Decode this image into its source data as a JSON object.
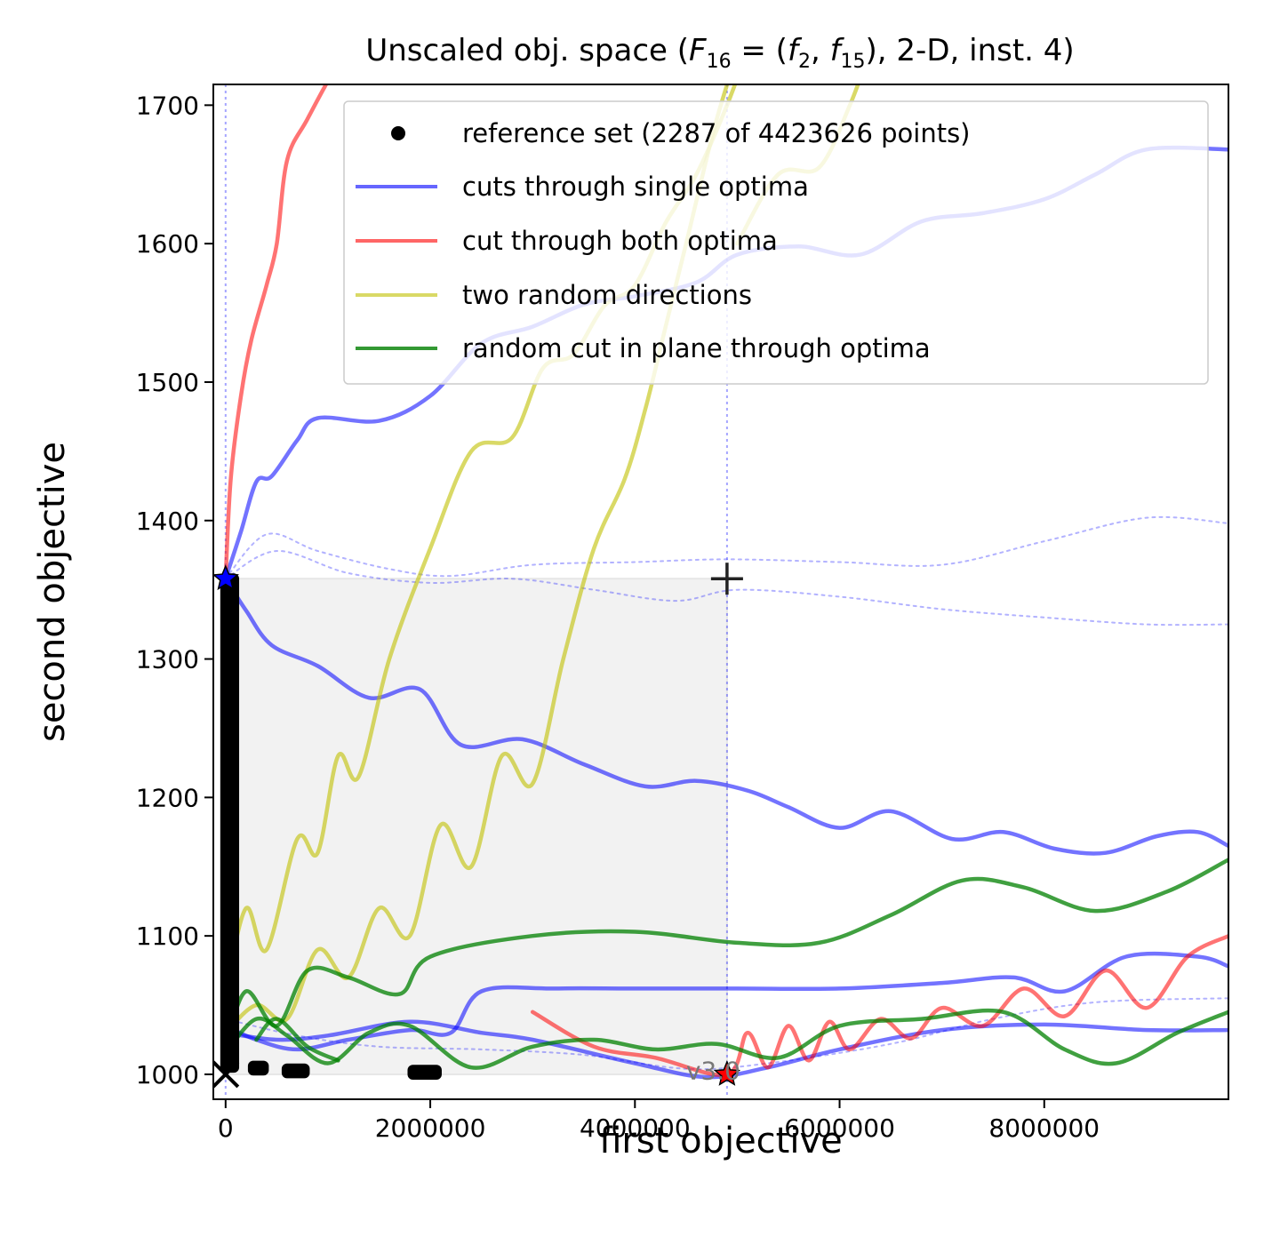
{
  "chart_data": {
    "type": "line",
    "title": "Unscaled obj. space (F16 = (f2, f15), 2-D, inst. 4)",
    "title_parts": {
      "pre": "Unscaled obj. space (",
      "F": "F",
      "F_sub": "16",
      "eq": " = (",
      "f1": "f",
      "f1_sub": "2",
      "comma": ", ",
      "f2": "f",
      "f2_sub": "15",
      "post": "), 2-D, inst. 4)"
    },
    "xlabel": "first objective",
    "ylabel": "second objective",
    "xlim": [
      -120000,
      9800000
    ],
    "ylim": [
      982,
      1715
    ],
    "xticks": [
      0,
      2000000,
      4000000,
      6000000,
      8000000
    ],
    "xtick_labels": [
      "0",
      "2000000",
      "4000000",
      "6000000",
      "8000000"
    ],
    "yticks": [
      1000,
      1100,
      1200,
      1300,
      1400,
      1500,
      1600,
      1700
    ],
    "ytick_labels": [
      "1000",
      "1100",
      "1200",
      "1300",
      "1400",
      "1500",
      "1600",
      "1700"
    ],
    "grid": false,
    "legend_position": "top-right",
    "legend": [
      {
        "label": "reference set (2287 of 4423626 points)",
        "kind": "marker",
        "color": "#000000"
      },
      {
        "label": "cuts through single optima",
        "kind": "line",
        "color": "#0000ff"
      },
      {
        "label": "cut through both optima",
        "kind": "line",
        "color": "#ff0000"
      },
      {
        "label": "two random directions",
        "kind": "line",
        "color": "#bfbf00"
      },
      {
        "label": "random cut in plane through optima",
        "kind": "line",
        "color": "#008000"
      }
    ],
    "shaded_region": {
      "x": [
        0,
        4900000
      ],
      "y": [
        1000,
        1358
      ]
    },
    "ideal_point": [
      0,
      1000
    ],
    "nadir_point": [
      4900000,
      1358
    ],
    "optimum_1": [
      0,
      1358
    ],
    "optimum_2": [
      4900000,
      1000
    ],
    "vlines_x": [
      0,
      4900000
    ],
    "annotation": "v3.0",
    "annotation_pos": [
      4500000,
      1003
    ],
    "series": [
      {
        "name": "blue cut A",
        "color": "#0000ff",
        "alpha": 0.55,
        "style": "solid",
        "points": [
          [
            0,
            1358
          ],
          [
            200000,
            1335
          ],
          [
            450000,
            1310
          ],
          [
            900000,
            1295
          ],
          [
            1400000,
            1272
          ],
          [
            1900000,
            1278
          ],
          [
            2300000,
            1238
          ],
          [
            2900000,
            1242
          ],
          [
            3500000,
            1224
          ],
          [
            4100000,
            1208
          ],
          [
            4600000,
            1212
          ],
          [
            5100000,
            1205
          ],
          [
            5500000,
            1193
          ],
          [
            6000000,
            1178
          ],
          [
            6500000,
            1190
          ],
          [
            7100000,
            1170
          ],
          [
            7600000,
            1175
          ],
          [
            8100000,
            1163
          ],
          [
            8600000,
            1160
          ],
          [
            9100000,
            1172
          ],
          [
            9500000,
            1175
          ],
          [
            9800000,
            1165
          ]
        ]
      },
      {
        "name": "blue cut B",
        "color": "#0000ff",
        "alpha": 0.55,
        "style": "solid",
        "points": [
          [
            0,
            1358
          ],
          [
            150000,
            1392
          ],
          [
            300000,
            1428
          ],
          [
            450000,
            1432
          ],
          [
            700000,
            1458
          ],
          [
            900000,
            1474
          ],
          [
            1500000,
            1472
          ],
          [
            2000000,
            1490
          ],
          [
            2500000,
            1528
          ],
          [
            3000000,
            1540
          ],
          [
            3500000,
            1556
          ],
          [
            4000000,
            1562
          ],
          [
            4600000,
            1572
          ],
          [
            5000000,
            1592
          ],
          [
            5600000,
            1598
          ],
          [
            6200000,
            1592
          ],
          [
            6800000,
            1616
          ],
          [
            7400000,
            1622
          ],
          [
            8000000,
            1632
          ],
          [
            8500000,
            1650
          ],
          [
            9000000,
            1668
          ],
          [
            9800000,
            1668
          ]
        ]
      },
      {
        "name": "blue cut C",
        "color": "#0000ff",
        "alpha": 0.55,
        "style": "solid",
        "points": [
          [
            0,
            1035
          ],
          [
            300000,
            1025
          ],
          [
            700000,
            1018
          ],
          [
            1200000,
            1025
          ],
          [
            1800000,
            1032
          ],
          [
            2200000,
            1030
          ],
          [
            2500000,
            1060
          ],
          [
            3200000,
            1062
          ],
          [
            4000000,
            1062
          ],
          [
            5000000,
            1062
          ],
          [
            6000000,
            1062
          ],
          [
            7000000,
            1066
          ],
          [
            7700000,
            1070
          ],
          [
            8200000,
            1060
          ],
          [
            8800000,
            1085
          ],
          [
            9500000,
            1085
          ],
          [
            9800000,
            1078
          ]
        ]
      },
      {
        "name": "blue cut D",
        "color": "#0000ff",
        "alpha": 0.55,
        "style": "solid",
        "points": [
          [
            0,
            1030
          ],
          [
            500000,
            1025
          ],
          [
            1000000,
            1028
          ],
          [
            1800000,
            1038
          ],
          [
            2500000,
            1030
          ],
          [
            3000000,
            1025
          ],
          [
            4000000,
            1008
          ],
          [
            4700000,
            998
          ],
          [
            5300000,
            1005
          ],
          [
            6000000,
            1018
          ],
          [
            7000000,
            1032
          ],
          [
            8000000,
            1036
          ],
          [
            9000000,
            1032
          ],
          [
            9800000,
            1032
          ]
        ]
      },
      {
        "name": "blue dotted A",
        "color": "#0000ff",
        "alpha": 0.3,
        "style": "dotted",
        "points": [
          [
            0,
            1358
          ],
          [
            400000,
            1390
          ],
          [
            900000,
            1378
          ],
          [
            1600000,
            1365
          ],
          [
            2200000,
            1360
          ],
          [
            3000000,
            1368
          ],
          [
            4000000,
            1370
          ],
          [
            4900000,
            1372
          ],
          [
            6000000,
            1370
          ],
          [
            7000000,
            1368
          ],
          [
            8000000,
            1385
          ],
          [
            9000000,
            1402
          ],
          [
            9800000,
            1398
          ]
        ]
      },
      {
        "name": "blue dotted B",
        "color": "#0000ff",
        "alpha": 0.3,
        "style": "dotted",
        "points": [
          [
            0,
            1358
          ],
          [
            500000,
            1378
          ],
          [
            1200000,
            1362
          ],
          [
            2000000,
            1355
          ],
          [
            2800000,
            1358
          ],
          [
            3600000,
            1350
          ],
          [
            4400000,
            1342
          ],
          [
            5000000,
            1350
          ],
          [
            6000000,
            1345
          ],
          [
            7000000,
            1336
          ],
          [
            8000000,
            1330
          ],
          [
            9000000,
            1325
          ],
          [
            9800000,
            1325
          ]
        ]
      },
      {
        "name": "blue dotted C",
        "color": "#0000ff",
        "alpha": 0.3,
        "style": "dotted",
        "points": [
          [
            0,
            1040
          ],
          [
            700000,
            1028
          ],
          [
            1500000,
            1020
          ],
          [
            2500000,
            1018
          ],
          [
            3500000,
            1014
          ],
          [
            4500000,
            1004
          ],
          [
            5300000,
            1008
          ],
          [
            6500000,
            1022
          ],
          [
            7500000,
            1040
          ],
          [
            8500000,
            1052
          ],
          [
            9800000,
            1055
          ]
        ]
      },
      {
        "name": "red cut",
        "color": "#ff0000",
        "alpha": 0.55,
        "style": "solid",
        "points": [
          [
            0,
            1358
          ],
          [
            50000,
            1430
          ],
          [
            150000,
            1490
          ],
          [
            250000,
            1530
          ],
          [
            400000,
            1570
          ],
          [
            500000,
            1600
          ],
          [
            600000,
            1660
          ],
          [
            800000,
            1690
          ],
          [
            1100000,
            1730
          ],
          [
            1400000,
            1760
          ]
        ]
      },
      {
        "name": "red cut lower",
        "color": "#ff0000",
        "alpha": 0.55,
        "style": "solid",
        "points": [
          [
            3000000,
            1045
          ],
          [
            3600000,
            1020
          ],
          [
            4200000,
            1012
          ],
          [
            4900000,
            1000
          ],
          [
            5100000,
            1030
          ],
          [
            5300000,
            1005
          ],
          [
            5500000,
            1035
          ],
          [
            5700000,
            1010
          ],
          [
            5900000,
            1038
          ],
          [
            6100000,
            1018
          ],
          [
            6400000,
            1040
          ],
          [
            6700000,
            1026
          ],
          [
            7000000,
            1048
          ],
          [
            7400000,
            1035
          ],
          [
            7800000,
            1062
          ],
          [
            8200000,
            1042
          ],
          [
            8600000,
            1075
          ],
          [
            9000000,
            1048
          ],
          [
            9400000,
            1085
          ],
          [
            9800000,
            1100
          ]
        ]
      },
      {
        "name": "yellow dir A",
        "color": "#bfbf00",
        "alpha": 0.6,
        "style": "solid",
        "points": [
          [
            0,
            1060
          ],
          [
            200000,
            1120
          ],
          [
            400000,
            1090
          ],
          [
            700000,
            1170
          ],
          [
            900000,
            1160
          ],
          [
            1100000,
            1230
          ],
          [
            1300000,
            1215
          ],
          [
            1600000,
            1300
          ],
          [
            2000000,
            1380
          ],
          [
            2400000,
            1450
          ],
          [
            2800000,
            1460
          ],
          [
            3100000,
            1510
          ],
          [
            3400000,
            1520
          ],
          [
            3700000,
            1555
          ],
          [
            4000000,
            1570
          ],
          [
            4300000,
            1615
          ],
          [
            4600000,
            1650
          ],
          [
            4900000,
            1700
          ],
          [
            5200000,
            1760
          ]
        ]
      },
      {
        "name": "yellow dir B",
        "color": "#bfbf00",
        "alpha": 0.6,
        "style": "solid",
        "points": [
          [
            0,
            1030
          ],
          [
            300000,
            1050
          ],
          [
            600000,
            1040
          ],
          [
            900000,
            1090
          ],
          [
            1200000,
            1070
          ],
          [
            1500000,
            1120
          ],
          [
            1800000,
            1100
          ],
          [
            2100000,
            1180
          ],
          [
            2400000,
            1150
          ],
          [
            2700000,
            1230
          ],
          [
            3000000,
            1210
          ],
          [
            3300000,
            1300
          ],
          [
            3600000,
            1380
          ],
          [
            3900000,
            1430
          ],
          [
            4100000,
            1480
          ],
          [
            4300000,
            1540
          ],
          [
            4500000,
            1600
          ],
          [
            4800000,
            1690
          ],
          [
            5100000,
            1760
          ]
        ]
      },
      {
        "name": "yellow dir C",
        "color": "#bfbf00",
        "alpha": 0.6,
        "style": "solid",
        "points": [
          [
            5000000,
            1600
          ],
          [
            5400000,
            1650
          ],
          [
            5800000,
            1655
          ],
          [
            6100000,
            1700
          ],
          [
            6300000,
            1740
          ]
        ]
      },
      {
        "name": "green cut A",
        "color": "#008000",
        "alpha": 0.75,
        "style": "solid",
        "points": [
          [
            0,
            1020
          ],
          [
            200000,
            1060
          ],
          [
            500000,
            1035
          ],
          [
            800000,
            1075
          ],
          [
            1200000,
            1070
          ],
          [
            1700000,
            1058
          ],
          [
            2000000,
            1085
          ],
          [
            3000000,
            1100
          ],
          [
            4000000,
            1103
          ],
          [
            5000000,
            1095
          ],
          [
            5800000,
            1095
          ],
          [
            6500000,
            1115
          ],
          [
            7200000,
            1140
          ],
          [
            7800000,
            1135
          ],
          [
            8500000,
            1118
          ],
          [
            9200000,
            1132
          ],
          [
            9800000,
            1155
          ]
        ]
      },
      {
        "name": "green cut B",
        "color": "#008000",
        "alpha": 0.75,
        "style": "solid",
        "points": [
          [
            0,
            1015
          ],
          [
            300000,
            1040
          ],
          [
            600000,
            1028
          ],
          [
            1000000,
            1008
          ],
          [
            1400000,
            1030
          ],
          [
            1800000,
            1035
          ],
          [
            2400000,
            1005
          ],
          [
            3000000,
            1020
          ],
          [
            3600000,
            1025
          ],
          [
            4200000,
            1018
          ],
          [
            4800000,
            1022
          ],
          [
            5400000,
            1012
          ],
          [
            6000000,
            1035
          ],
          [
            6800000,
            1040
          ],
          [
            7600000,
            1045
          ],
          [
            8200000,
            1018
          ],
          [
            8700000,
            1008
          ],
          [
            9300000,
            1030
          ],
          [
            9800000,
            1045
          ]
        ]
      },
      {
        "name": "green cut C",
        "color": "#008000",
        "alpha": 0.75,
        "style": "solid",
        "points": [
          [
            300000,
            1025
          ],
          [
            500000,
            1040
          ],
          [
            800000,
            1020
          ],
          [
            1100000,
            1010
          ]
        ]
      }
    ],
    "reference_set_clusters": [
      {
        "x": [
          0,
          80000
        ],
        "y": [
          1005,
          1358
        ]
      },
      {
        "x": [
          270000,
          370000
        ],
        "y": [
          1003,
          1006
        ]
      },
      {
        "x": [
          600000,
          770000
        ],
        "y": [
          1001,
          1004
        ]
      },
      {
        "x": [
          1830000,
          2060000
        ],
        "y": [
          1000,
          1003
        ]
      }
    ]
  }
}
